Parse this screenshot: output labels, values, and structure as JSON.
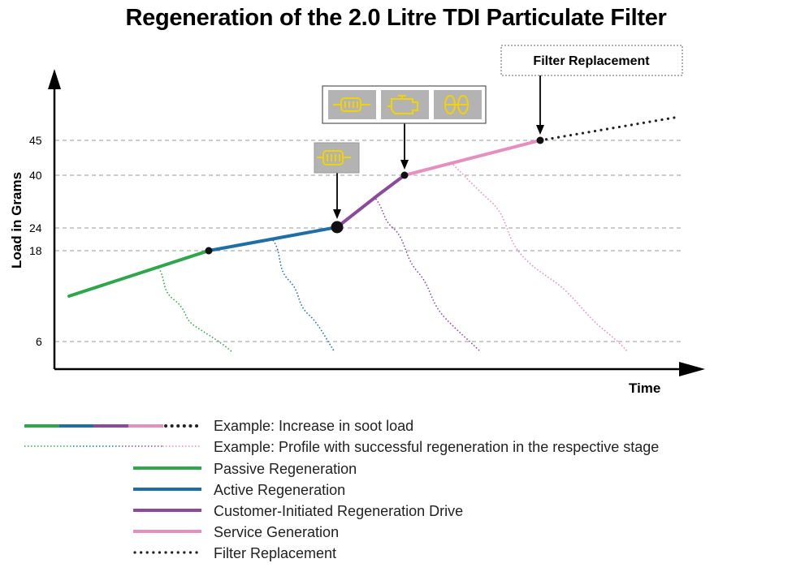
{
  "title": "Regeneration of the 2.0 Litre TDI Particulate Filter",
  "callout": "Filter Replacement",
  "axes": {
    "y_label": "Load in Grams",
    "x_label": "Time",
    "y_ticks": [
      "45",
      "40",
      "24",
      "18",
      "6"
    ]
  },
  "icons": {
    "single": [
      "particulate-filter-icon"
    ],
    "group": [
      "particulate-filter-icon",
      "engine-icon",
      "tyre-icon"
    ]
  },
  "colors": {
    "passive": "#2fa64c",
    "active": "#1f6fa6",
    "customer": "#8b4a9c",
    "service": "#e48fbd",
    "replacement": "#222222",
    "icon_fill": "#f2d200",
    "icon_bg": "#b3b3b3"
  },
  "legend": [
    {
      "key": "soot",
      "label": "Example: Increase in soot load"
    },
    {
      "key": "profile",
      "label": "Example: Profile with successful regeneration in the respective stage"
    },
    {
      "key": "passive",
      "label": "Passive Regeneration"
    },
    {
      "key": "active",
      "label": "Active Regeneration"
    },
    {
      "key": "customer",
      "label": "Customer-Initiated Regeneration Drive"
    },
    {
      "key": "service",
      "label": "Service Generation"
    },
    {
      "key": "replacement",
      "label": "Filter Replacement"
    }
  ]
}
